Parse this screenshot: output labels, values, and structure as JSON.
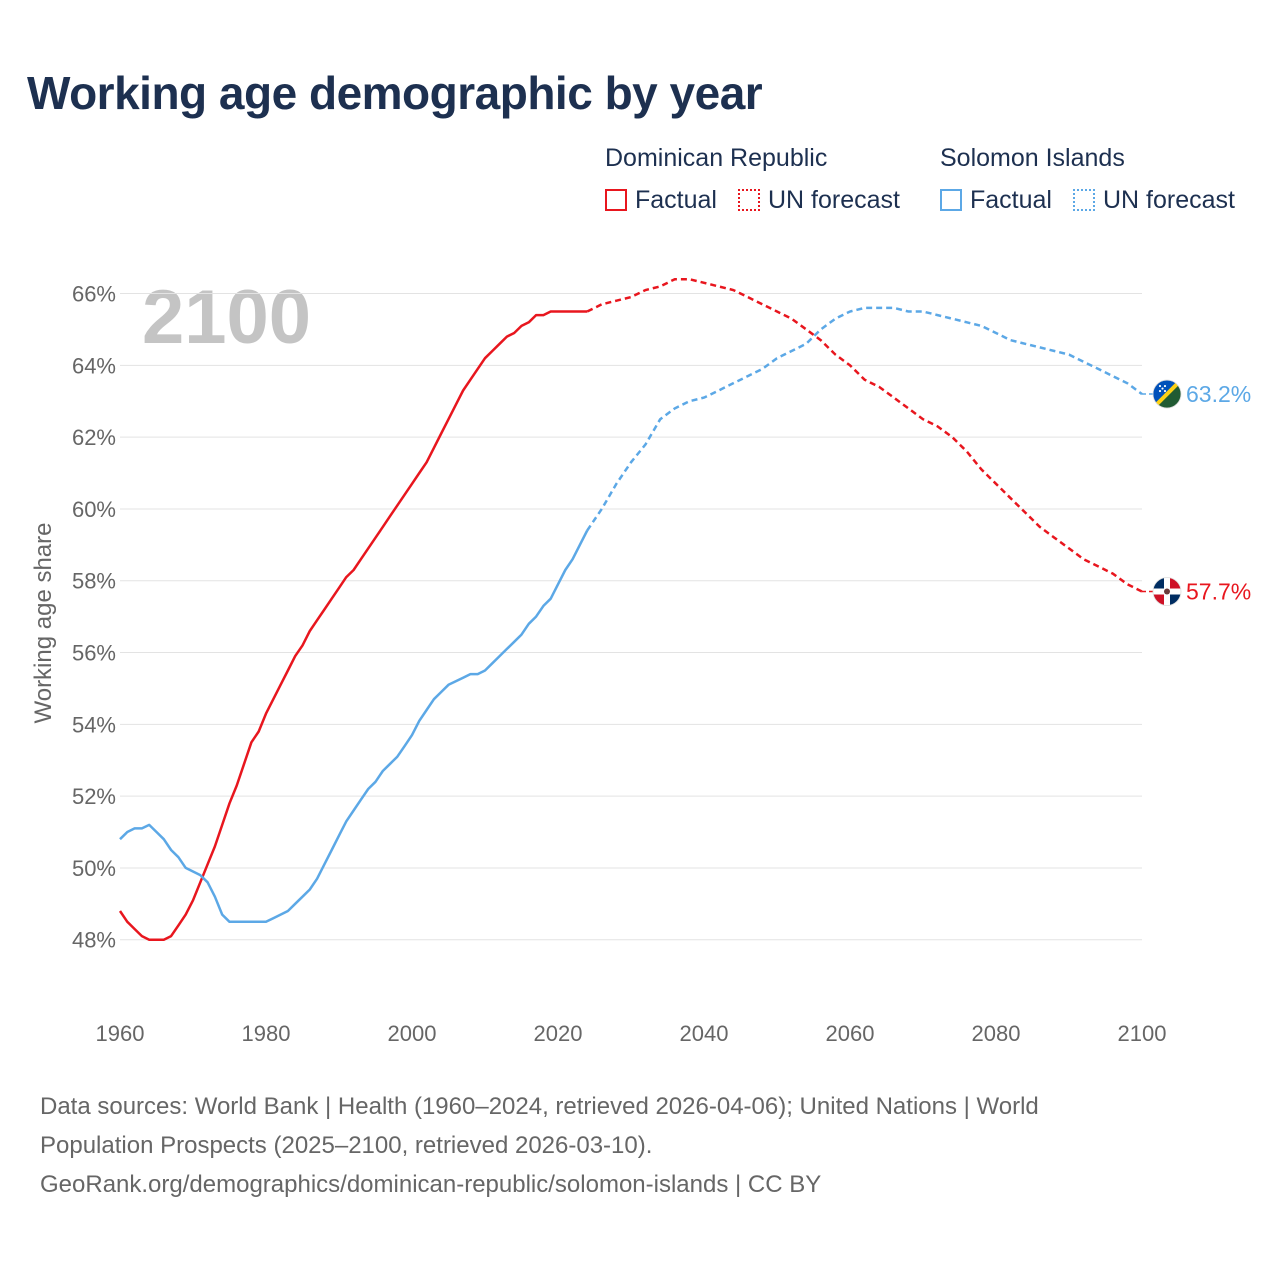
{
  "title": "Working age demographic by year",
  "legend": {
    "groups": [
      {
        "name": "Dominican Republic",
        "color": "#e8161e",
        "factual_label": "Factual",
        "forecast_label": "UN forecast"
      },
      {
        "name": "Solomon Islands",
        "color": "#5ca8e6",
        "factual_label": "Factual",
        "forecast_label": "UN forecast"
      }
    ]
  },
  "footer": {
    "line1": "Data sources: World Bank | Health (1960–2024, retrieved 2026-04-06); United Nations | World",
    "line2": "Population Prospects (2025–2100, retrieved 2026-03-10).",
    "line3": "GeoRank.org/demographics/dominican-republic/solomon-islands | CC BY"
  },
  "chart_data": {
    "type": "line",
    "year_label": "2100",
    "ylabel": "Working age share",
    "xlim": [
      1960,
      2100
    ],
    "ylim": [
      46.6,
      66.6
    ],
    "xticks": [
      1960,
      1980,
      2000,
      2020,
      2040,
      2060,
      2080,
      2100
    ],
    "yticks": [
      48,
      50,
      52,
      54,
      56,
      58,
      60,
      62,
      64,
      66
    ],
    "ytick_suffix": "%",
    "factual_end_year": 2024,
    "series": [
      {
        "name": "Dominican Republic",
        "color": "#e8161e",
        "end_label": "57.7%",
        "flag": "dominican-republic",
        "points": [
          [
            1960,
            48.8
          ],
          [
            1961,
            48.5
          ],
          [
            1962,
            48.3
          ],
          [
            1963,
            48.1
          ],
          [
            1964,
            48.0
          ],
          [
            1965,
            48.0
          ],
          [
            1966,
            48.0
          ],
          [
            1967,
            48.1
          ],
          [
            1968,
            48.4
          ],
          [
            1969,
            48.7
          ],
          [
            1970,
            49.1
          ],
          [
            1971,
            49.6
          ],
          [
            1972,
            50.1
          ],
          [
            1973,
            50.6
          ],
          [
            1974,
            51.2
          ],
          [
            1975,
            51.8
          ],
          [
            1976,
            52.3
          ],
          [
            1977,
            52.9
          ],
          [
            1978,
            53.5
          ],
          [
            1979,
            53.8
          ],
          [
            1980,
            54.3
          ],
          [
            1981,
            54.7
          ],
          [
            1982,
            55.1
          ],
          [
            1983,
            55.5
          ],
          [
            1984,
            55.9
          ],
          [
            1985,
            56.2
          ],
          [
            1986,
            56.6
          ],
          [
            1987,
            56.9
          ],
          [
            1988,
            57.2
          ],
          [
            1989,
            57.5
          ],
          [
            1990,
            57.8
          ],
          [
            1991,
            58.1
          ],
          [
            1992,
            58.3
          ],
          [
            1993,
            58.6
          ],
          [
            1994,
            58.9
          ],
          [
            1995,
            59.2
          ],
          [
            1996,
            59.5
          ],
          [
            1997,
            59.8
          ],
          [
            1998,
            60.1
          ],
          [
            1999,
            60.4
          ],
          [
            2000,
            60.7
          ],
          [
            2001,
            61.0
          ],
          [
            2002,
            61.3
          ],
          [
            2003,
            61.7
          ],
          [
            2004,
            62.1
          ],
          [
            2005,
            62.5
          ],
          [
            2006,
            62.9
          ],
          [
            2007,
            63.3
          ],
          [
            2008,
            63.6
          ],
          [
            2009,
            63.9
          ],
          [
            2010,
            64.2
          ],
          [
            2011,
            64.4
          ],
          [
            2012,
            64.6
          ],
          [
            2013,
            64.8
          ],
          [
            2014,
            64.9
          ],
          [
            2015,
            65.1
          ],
          [
            2016,
            65.2
          ],
          [
            2017,
            65.4
          ],
          [
            2018,
            65.4
          ],
          [
            2019,
            65.5
          ],
          [
            2020,
            65.5
          ],
          [
            2021,
            65.5
          ],
          [
            2022,
            65.5
          ],
          [
            2023,
            65.5
          ],
          [
            2024,
            65.5
          ],
          [
            2026,
            65.7
          ],
          [
            2028,
            65.8
          ],
          [
            2030,
            65.9
          ],
          [
            2032,
            66.1
          ],
          [
            2034,
            66.2
          ],
          [
            2036,
            66.4
          ],
          [
            2038,
            66.4
          ],
          [
            2040,
            66.3
          ],
          [
            2042,
            66.2
          ],
          [
            2044,
            66.1
          ],
          [
            2046,
            65.9
          ],
          [
            2048,
            65.7
          ],
          [
            2050,
            65.5
          ],
          [
            2052,
            65.3
          ],
          [
            2054,
            65.0
          ],
          [
            2056,
            64.7
          ],
          [
            2058,
            64.3
          ],
          [
            2060,
            64.0
          ],
          [
            2062,
            63.6
          ],
          [
            2064,
            63.4
          ],
          [
            2066,
            63.1
          ],
          [
            2068,
            62.8
          ],
          [
            2070,
            62.5
          ],
          [
            2072,
            62.3
          ],
          [
            2074,
            62.0
          ],
          [
            2076,
            61.6
          ],
          [
            2078,
            61.1
          ],
          [
            2080,
            60.7
          ],
          [
            2082,
            60.3
          ],
          [
            2084,
            59.9
          ],
          [
            2086,
            59.5
          ],
          [
            2088,
            59.2
          ],
          [
            2090,
            58.9
          ],
          [
            2092,
            58.6
          ],
          [
            2094,
            58.4
          ],
          [
            2096,
            58.2
          ],
          [
            2098,
            57.9
          ],
          [
            2100,
            57.7
          ]
        ]
      },
      {
        "name": "Solomon Islands",
        "color": "#5ca8e6",
        "end_label": "63.2%",
        "flag": "solomon-islands",
        "points": [
          [
            1960,
            50.8
          ],
          [
            1961,
            51.0
          ],
          [
            1962,
            51.1
          ],
          [
            1963,
            51.1
          ],
          [
            1964,
            51.2
          ],
          [
            1965,
            51.0
          ],
          [
            1966,
            50.8
          ],
          [
            1967,
            50.5
          ],
          [
            1968,
            50.3
          ],
          [
            1969,
            50.0
          ],
          [
            1970,
            49.9
          ],
          [
            1971,
            49.8
          ],
          [
            1972,
            49.6
          ],
          [
            1973,
            49.2
          ],
          [
            1974,
            48.7
          ],
          [
            1975,
            48.5
          ],
          [
            1976,
            48.5
          ],
          [
            1977,
            48.5
          ],
          [
            1978,
            48.5
          ],
          [
            1979,
            48.5
          ],
          [
            1980,
            48.5
          ],
          [
            1981,
            48.6
          ],
          [
            1982,
            48.7
          ],
          [
            1983,
            48.8
          ],
          [
            1984,
            49.0
          ],
          [
            1985,
            49.2
          ],
          [
            1986,
            49.4
          ],
          [
            1987,
            49.7
          ],
          [
            1988,
            50.1
          ],
          [
            1989,
            50.5
          ],
          [
            1990,
            50.9
          ],
          [
            1991,
            51.3
          ],
          [
            1992,
            51.6
          ],
          [
            1993,
            51.9
          ],
          [
            1994,
            52.2
          ],
          [
            1995,
            52.4
          ],
          [
            1996,
            52.7
          ],
          [
            1997,
            52.9
          ],
          [
            1998,
            53.1
          ],
          [
            1999,
            53.4
          ],
          [
            2000,
            53.7
          ],
          [
            2001,
            54.1
          ],
          [
            2002,
            54.4
          ],
          [
            2003,
            54.7
          ],
          [
            2004,
            54.9
          ],
          [
            2005,
            55.1
          ],
          [
            2006,
            55.2
          ],
          [
            2007,
            55.3
          ],
          [
            2008,
            55.4
          ],
          [
            2009,
            55.4
          ],
          [
            2010,
            55.5
          ],
          [
            2011,
            55.7
          ],
          [
            2012,
            55.9
          ],
          [
            2013,
            56.1
          ],
          [
            2014,
            56.3
          ],
          [
            2015,
            56.5
          ],
          [
            2016,
            56.8
          ],
          [
            2017,
            57.0
          ],
          [
            2018,
            57.3
          ],
          [
            2019,
            57.5
          ],
          [
            2020,
            57.9
          ],
          [
            2021,
            58.3
          ],
          [
            2022,
            58.6
          ],
          [
            2023,
            59.0
          ],
          [
            2024,
            59.4
          ],
          [
            2026,
            60.0
          ],
          [
            2028,
            60.7
          ],
          [
            2030,
            61.3
          ],
          [
            2032,
            61.8
          ],
          [
            2034,
            62.5
          ],
          [
            2036,
            62.8
          ],
          [
            2038,
            63.0
          ],
          [
            2040,
            63.1
          ],
          [
            2042,
            63.3
          ],
          [
            2044,
            63.5
          ],
          [
            2046,
            63.7
          ],
          [
            2048,
            63.9
          ],
          [
            2050,
            64.2
          ],
          [
            2052,
            64.4
          ],
          [
            2054,
            64.6
          ],
          [
            2056,
            65.0
          ],
          [
            2058,
            65.3
          ],
          [
            2060,
            65.5
          ],
          [
            2062,
            65.6
          ],
          [
            2064,
            65.6
          ],
          [
            2066,
            65.6
          ],
          [
            2068,
            65.5
          ],
          [
            2070,
            65.5
          ],
          [
            2072,
            65.4
          ],
          [
            2074,
            65.3
          ],
          [
            2076,
            65.2
          ],
          [
            2078,
            65.1
          ],
          [
            2080,
            64.9
          ],
          [
            2082,
            64.7
          ],
          [
            2084,
            64.6
          ],
          [
            2086,
            64.5
          ],
          [
            2088,
            64.4
          ],
          [
            2090,
            64.3
          ],
          [
            2092,
            64.1
          ],
          [
            2094,
            63.9
          ],
          [
            2096,
            63.7
          ],
          [
            2098,
            63.5
          ],
          [
            2100,
            63.2
          ]
        ]
      }
    ]
  }
}
